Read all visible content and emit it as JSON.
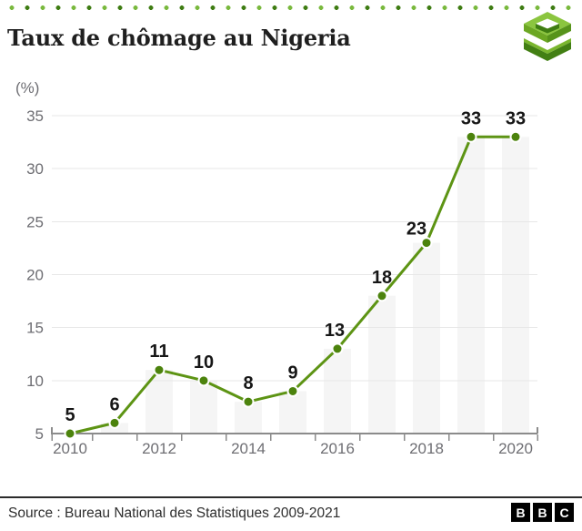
{
  "header": {
    "title": "Taux de chômage au Nigeria",
    "logo": "stacked-layers-logo"
  },
  "chart_data": {
    "type": "line",
    "title": "Taux de chômage au Nigeria",
    "unit_label": "(%)",
    "x": [
      2010,
      2011,
      2012,
      2013,
      2014,
      2015,
      2016,
      2017,
      2018,
      2019,
      2020
    ],
    "values": [
      5,
      6,
      11,
      10,
      8,
      9,
      13,
      18,
      23,
      33,
      33
    ],
    "point_labels": [
      "5",
      "6",
      "11",
      "10",
      "8",
      "9",
      "13",
      "18",
      "23",
      "33",
      "33"
    ],
    "yticks": [
      5,
      10,
      15,
      20,
      25,
      30,
      35
    ],
    "xticks": [
      2010,
      2012,
      2014,
      2016,
      2018,
      2020
    ],
    "ylim": [
      5,
      35
    ],
    "grid": true,
    "legend_position": "none",
    "background_bars": true,
    "colors": {
      "line": "#5d9414",
      "point": "#4c830d",
      "point_halo": "#ffffff",
      "background_bar": "#f5f5f5",
      "grid": "#e7e7e7",
      "axis": "#8b8b8b",
      "tick_text": "#6e6e73",
      "value_label": "#161616"
    }
  },
  "decor": {
    "dot_border_colors": [
      "#7ab93e",
      "#3f7d14"
    ]
  },
  "footer": {
    "source": "Source : Bureau National des Statistiques 2009-2021",
    "brand_letters": [
      "B",
      "B",
      "C"
    ]
  }
}
